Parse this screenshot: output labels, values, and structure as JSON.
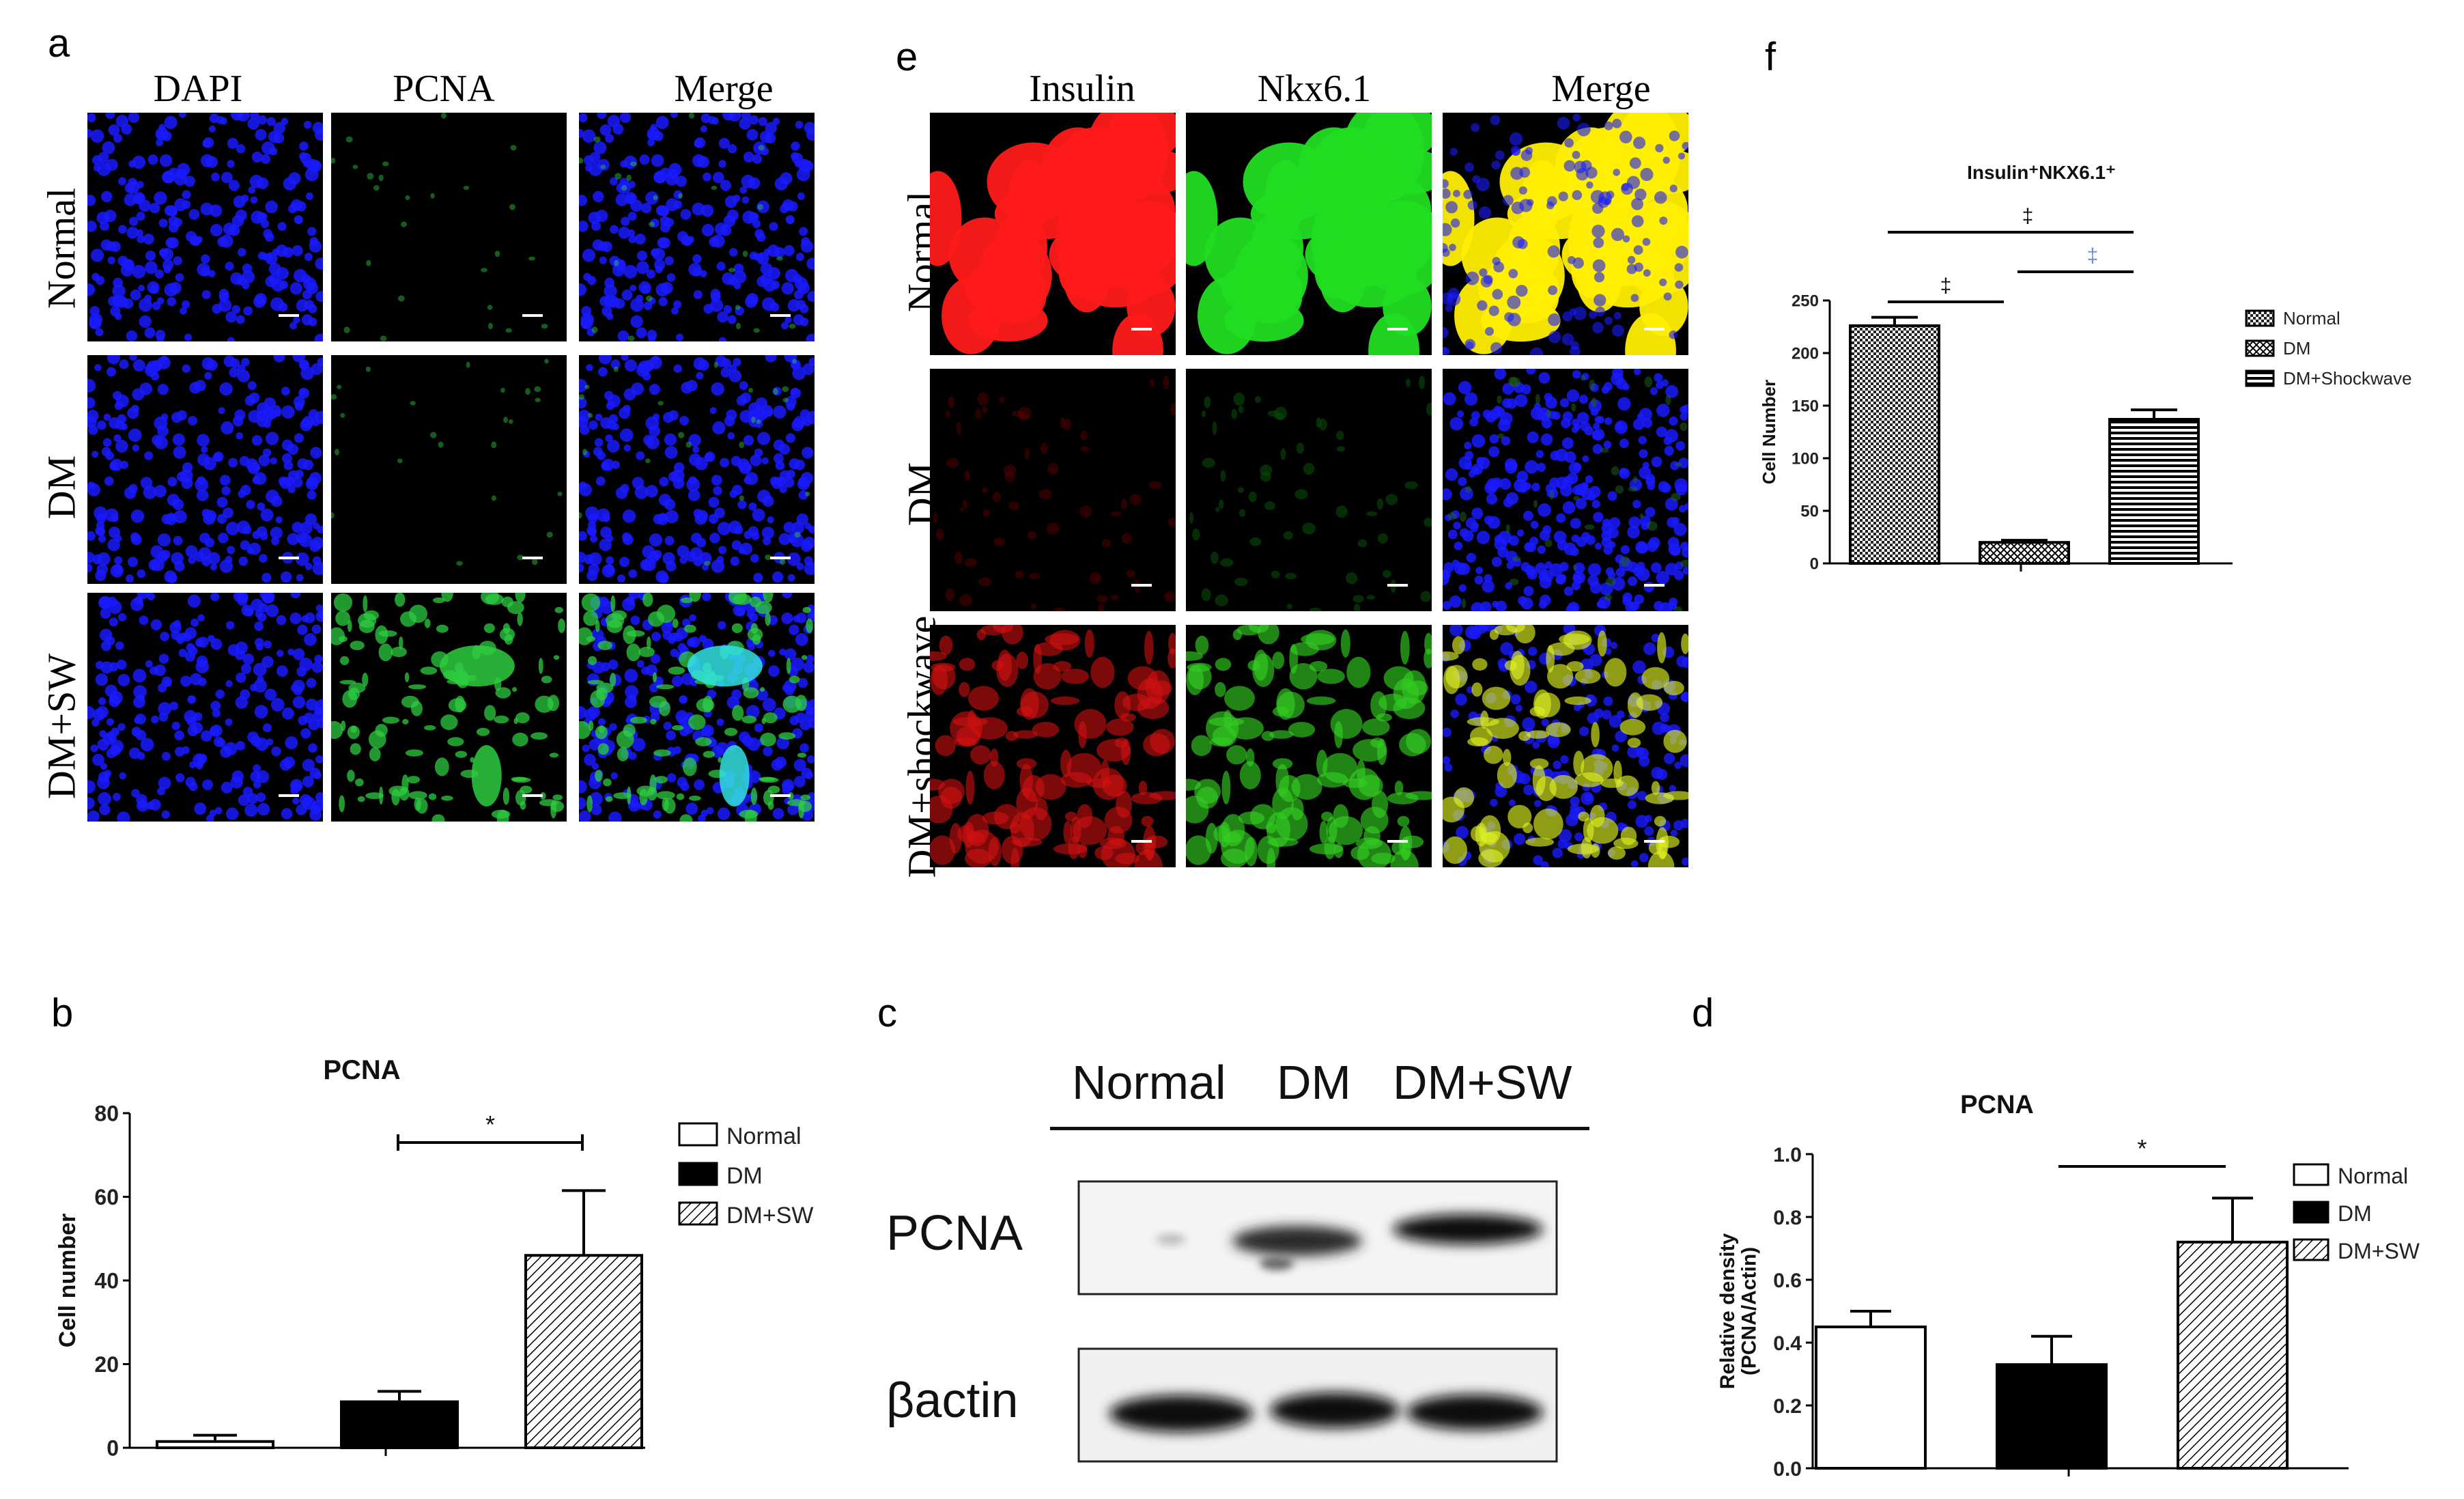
{
  "panels": {
    "a": {
      "letter": "a",
      "columns": [
        "DAPI",
        "PCNA",
        "Merge"
      ],
      "rows": [
        "Normal",
        "DM",
        "DM+SW"
      ]
    },
    "e": {
      "letter": "e",
      "columns": [
        "Insulin",
        "Nkx6.1",
        "Merge"
      ],
      "rows": [
        "Normal",
        "DM",
        "DM+shockwave"
      ]
    },
    "b": {
      "letter": "b"
    },
    "c": {
      "letter": "c",
      "lanes": [
        "Normal",
        "DM",
        "DM+SW"
      ],
      "bands": [
        "PCNA",
        "βactin"
      ]
    },
    "d": {
      "letter": "d"
    },
    "f": {
      "letter": "f"
    }
  },
  "colors": {
    "dapi": "#1a1aff",
    "pcna": "#2ecc40",
    "insulin": "#ff1a1a",
    "nkx": "#22dd22",
    "merge_yellow": "#ffee00",
    "bar_dm": "#000000"
  },
  "chart_data": [
    {
      "panel": "b",
      "type": "bar",
      "title": "PCNA",
      "xlabel": "",
      "ylabel": "Cell number",
      "ylim": [
        0,
        80
      ],
      "yticks": [
        0,
        20,
        40,
        60,
        80
      ],
      "categories": [
        "Normal",
        "DM",
        "DM+SW"
      ],
      "values": [
        1.5,
        11,
        46
      ],
      "errors": [
        1.5,
        2.5,
        15.5
      ],
      "fills": [
        "white",
        "black",
        "hatch"
      ],
      "legend": [
        "Normal",
        "DM",
        "DM+SW"
      ],
      "legend_position": "right",
      "annotations": [
        {
          "text": "*",
          "from": "DM",
          "to": "DM+SW"
        }
      ]
    },
    {
      "panel": "d",
      "type": "bar",
      "title": "PCNA",
      "xlabel": "",
      "ylabel": "Relative density (PCNA/Actin)",
      "ylabel_lines": [
        "Relative density",
        "(PCNA/Actin)"
      ],
      "ylim": [
        0,
        1.0
      ],
      "yticks": [
        "0.0",
        "0.2",
        "0.4",
        "0.6",
        "0.8",
        "1.0"
      ],
      "categories": [
        "Normal",
        "DM",
        "DM+SW"
      ],
      "values": [
        0.45,
        0.33,
        0.72
      ],
      "errors": [
        0.05,
        0.09,
        0.14
      ],
      "fills": [
        "white",
        "black",
        "hatch"
      ],
      "legend": [
        "Normal",
        "DM",
        "DM+SW"
      ],
      "legend_position": "right",
      "annotations": [
        {
          "text": "*",
          "from": "DM",
          "to": "DM+SW"
        }
      ]
    },
    {
      "panel": "f",
      "type": "bar",
      "title": "Insulin⁺NKX6.1⁺",
      "xlabel": "",
      "ylabel": "Cell Number",
      "ylim": [
        0,
        250
      ],
      "yticks": [
        0,
        50,
        100,
        150,
        200,
        250
      ],
      "categories": [
        "Normal",
        "DM",
        "DM+Shockwave"
      ],
      "values": [
        226,
        20,
        137
      ],
      "errors": [
        8,
        2,
        9
      ],
      "fills": [
        "grid",
        "check",
        "hlines"
      ],
      "legend": [
        "Normal",
        "DM",
        "DM+Shockwave"
      ],
      "legend_position": "right",
      "annotations": [
        {
          "text": "‡",
          "from": "Normal",
          "to": "DM"
        },
        {
          "text": "‡",
          "from": "DM",
          "to": "DM+Shockwave"
        },
        {
          "text": "‡",
          "from": "Normal",
          "to": "DM+Shockwave"
        }
      ]
    }
  ]
}
